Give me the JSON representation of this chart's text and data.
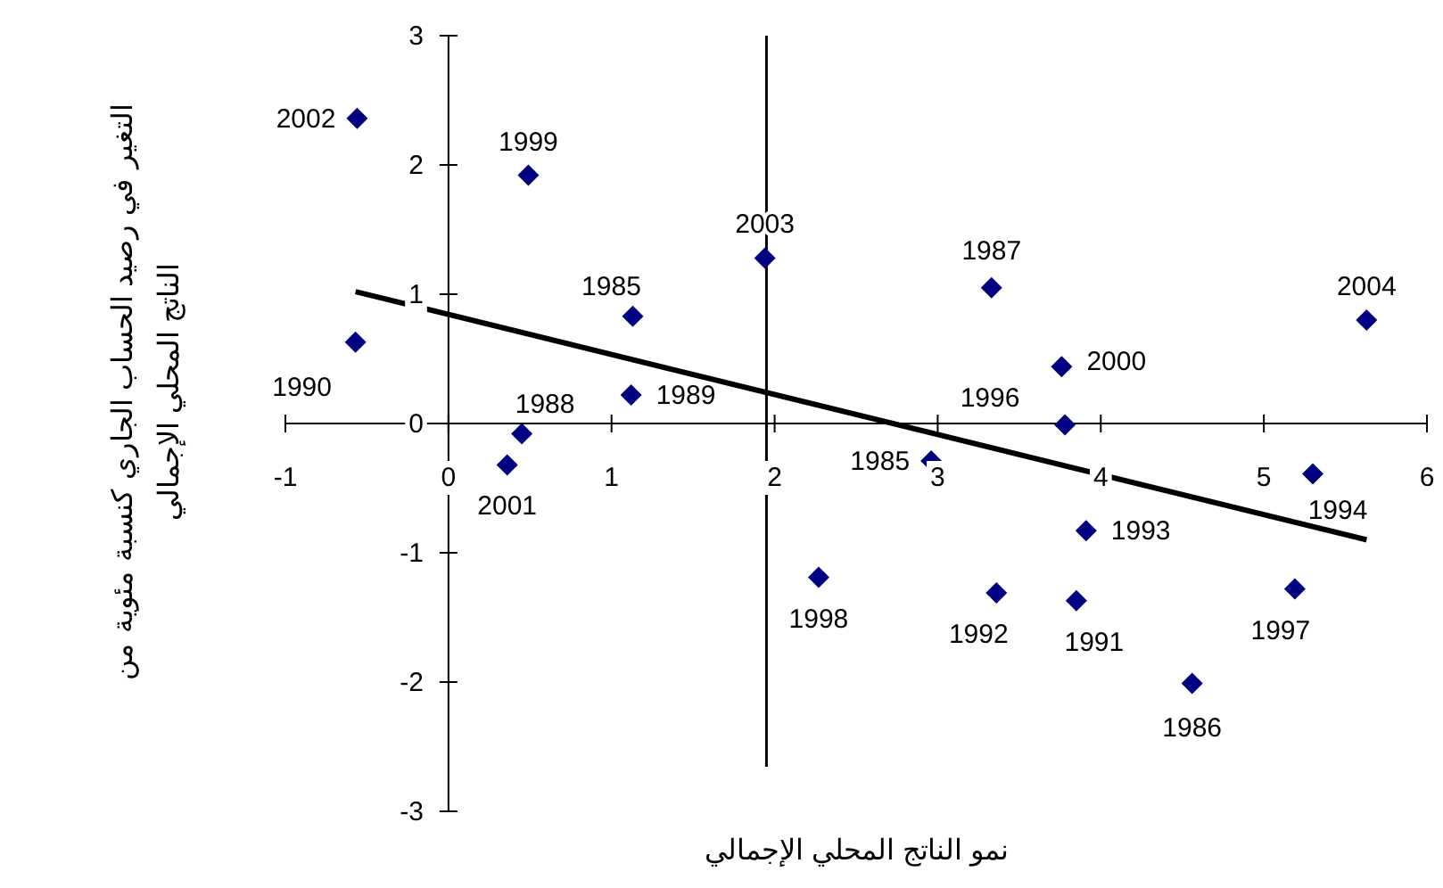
{
  "chart_data": {
    "type": "scatter",
    "xlabel": "نمو الناتج المحلي الإجمالي",
    "ylabel": "التغير في رصيد الحساب الجاري كنسبة مئوية من الناتج المحلي الإجمالي",
    "xlim": [
      -1,
      6
    ],
    "ylim": [
      -3,
      3
    ],
    "xticks": [
      -1,
      0,
      1,
      2,
      3,
      4,
      5,
      6
    ],
    "yticks": [
      -3,
      -2,
      -1,
      0,
      1,
      2,
      3
    ],
    "marker": "diamond",
    "grid": false,
    "ref_lines": [
      {
        "axis": "x",
        "value": 1.95,
        "color": "#000000"
      }
    ],
    "series": [
      {
        "type": "scatter",
        "color": "#000080",
        "x": [
          -0.56,
          0.49,
          1.94,
          1.13,
          -0.57,
          1.12,
          0.45,
          0.36,
          3.33,
          3.76,
          3.78,
          2.96,
          5.3,
          3.91,
          2.27,
          3.36,
          3.85,
          5.19,
          4.56,
          5.63
        ],
        "values": [
          2.36,
          1.92,
          1.28,
          0.83,
          0.63,
          0.22,
          -0.08,
          -0.32,
          1.05,
          0.44,
          -0.01,
          -0.29,
          -0.39,
          -0.83,
          -1.19,
          -1.31,
          -1.37,
          -1.28,
          -2.01,
          0.8
        ]
      },
      {
        "type": "line",
        "marker": "none",
        "color": "#000000",
        "x": [
          -0.57,
          5.63
        ],
        "values": [
          1.02,
          -0.9
        ]
      }
    ],
    "annotations": [
      {
        "text": "2002",
        "x": -0.56,
        "y": 2.36
      },
      {
        "text": "1999",
        "x": 0.49,
        "y": 1.92
      },
      {
        "text": "2003",
        "x": 1.94,
        "y": 1.28
      },
      {
        "text": "1985",
        "x": 1.13,
        "y": 0.83
      },
      {
        "text": "1990",
        "x": -0.57,
        "y": 0.63
      },
      {
        "text": "1989",
        "x": 1.12,
        "y": 0.22
      },
      {
        "text": "1988",
        "x": 0.45,
        "y": -0.08
      },
      {
        "text": "2001",
        "x": 0.36,
        "y": -0.32
      },
      {
        "text": "1987",
        "x": 3.33,
        "y": 1.05
      },
      {
        "text": "2000",
        "x": 3.76,
        "y": 0.44
      },
      {
        "text": "1996",
        "x": 3.78,
        "y": -0.01
      },
      {
        "text": "1985",
        "x": 2.96,
        "y": -0.29
      },
      {
        "text": "1994",
        "x": 5.3,
        "y": -0.39
      },
      {
        "text": "1993",
        "x": 3.91,
        "y": -0.83
      },
      {
        "text": "1998",
        "x": 2.27,
        "y": -1.19
      },
      {
        "text": "1992",
        "x": 3.36,
        "y": -1.31
      },
      {
        "text": "1991",
        "x": 3.85,
        "y": -1.37
      },
      {
        "text": "1997",
        "x": 5.19,
        "y": -1.28
      },
      {
        "text": "1986",
        "x": 4.56,
        "y": -2.01
      },
      {
        "text": "2004",
        "x": 5.63,
        "y": 0.8
      }
    ]
  }
}
